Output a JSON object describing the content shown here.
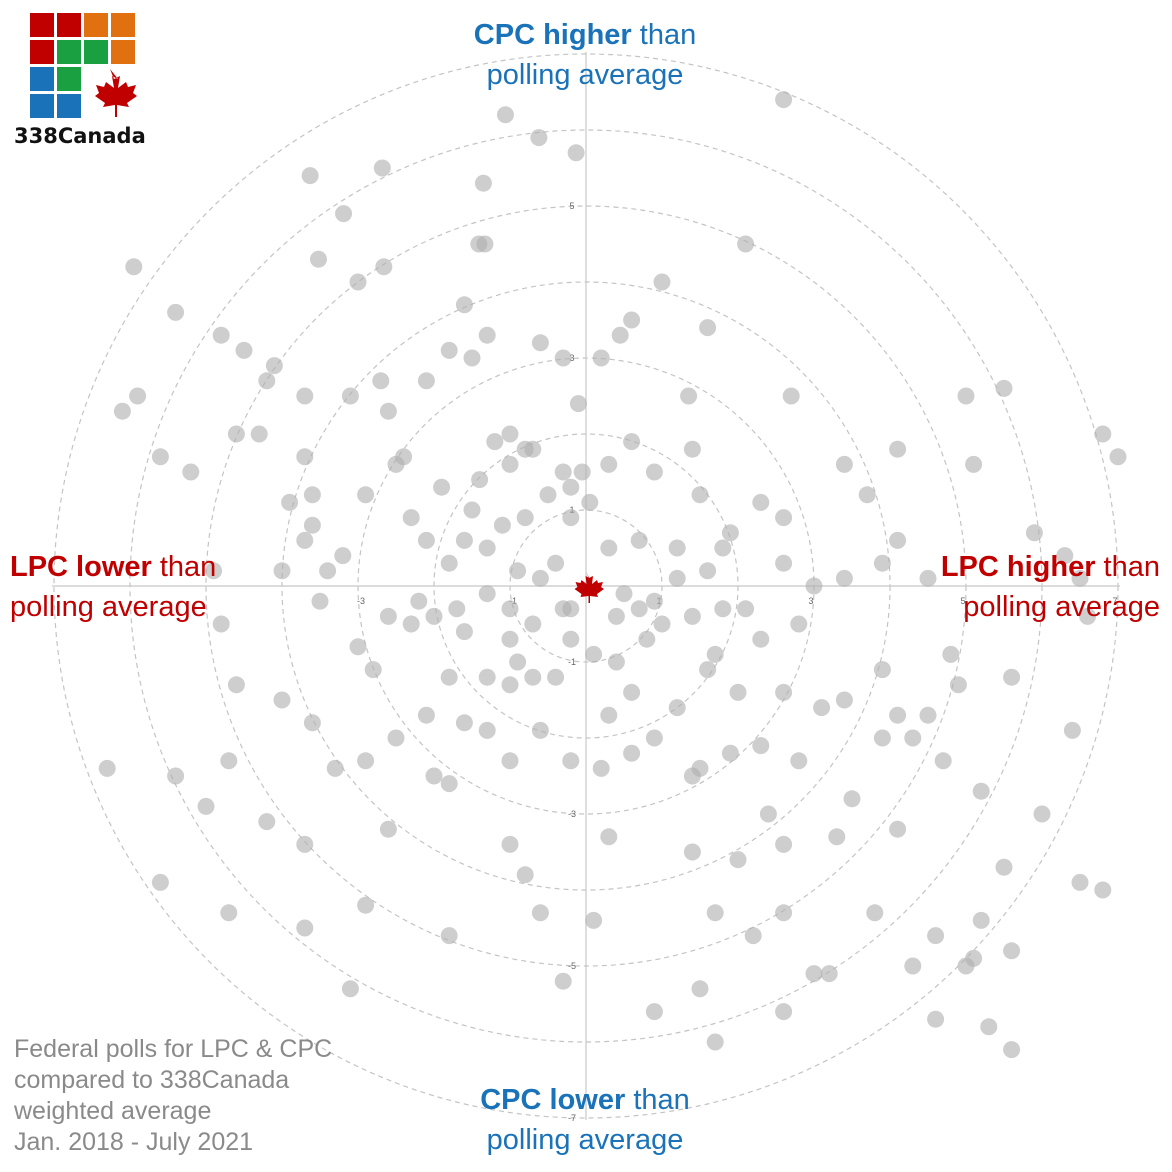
{
  "logo": {
    "text": "338Canada",
    "colors": [
      "#c00000",
      "#c00000",
      "#e07010",
      "#e07010",
      "#c00000",
      "#1aa040",
      "#1aa040",
      "#e07010",
      "#1a73b8",
      "#1aa040",
      "#1a73b8",
      "#1a73b8"
    ],
    "leaf_color": "#c00000"
  },
  "labels": {
    "top_bold": "CPC higher",
    "top_rest": " than",
    "top_line2": "polling average",
    "bottom_bold": "CPC lower",
    "bottom_rest": " than",
    "bottom_line2": "polling average",
    "left_bold": "LPC lower",
    "left_rest": " than",
    "left_line2": "polling average",
    "right_bold": "LPC higher",
    "right_rest": " than",
    "right_line2": "polling average"
  },
  "footnote": [
    "Federal polls for LPC & CPC",
    "compared to 338Canada",
    "weighted average",
    "Jan. 2018 - July 2021"
  ],
  "chart_data": {
    "type": "scatter",
    "xlabel": "",
    "ylabel": "",
    "xlim": [
      -7,
      7
    ],
    "ylim": [
      -7,
      7
    ],
    "ring_values": [
      1,
      2,
      3,
      4,
      5,
      6,
      7
    ],
    "tick_labels_y_pos": [
      "1",
      "3",
      "5"
    ],
    "tick_labels_y_neg": [
      "-1",
      "-3",
      "-5",
      "-7"
    ],
    "tick_labels_x_pos": [
      "1",
      "3",
      "5",
      "7"
    ],
    "tick_labels_x_neg": [
      "-1",
      "-3"
    ],
    "center_marker": "maple-leaf",
    "point_color": "#b0b0b0",
    "points": [
      [
        2.6,
        6.4
      ],
      [
        -1.06,
        6.2
      ],
      [
        -0.62,
        5.9
      ],
      [
        -0.13,
        5.7
      ],
      [
        -1.35,
        5.3
      ],
      [
        -3.63,
        5.4
      ],
      [
        -2.68,
        5.5
      ],
      [
        -3.19,
        4.9
      ],
      [
        -5.95,
        4.2
      ],
      [
        -3.52,
        4.3
      ],
      [
        -1.41,
        4.5
      ],
      [
        -1.33,
        4.5
      ],
      [
        -3.0,
        4.0
      ],
      [
        -2.66,
        4.2
      ],
      [
        2.1,
        4.5
      ],
      [
        1.0,
        4.0
      ],
      [
        -5.4,
        3.6
      ],
      [
        -4.8,
        3.3
      ],
      [
        -4.5,
        3.1
      ],
      [
        -4.2,
        2.7
      ],
      [
        -1.6,
        3.7
      ],
      [
        -1.3,
        3.3
      ],
      [
        -0.6,
        3.2
      ],
      [
        -0.3,
        3.0
      ],
      [
        0.2,
        3.0
      ],
      [
        0.45,
        3.3
      ],
      [
        0.6,
        3.5
      ],
      [
        1.6,
        3.4
      ],
      [
        2.7,
        2.5
      ],
      [
        1.35,
        2.5
      ],
      [
        -6.1,
        2.3
      ],
      [
        -5.9,
        2.5
      ],
      [
        -4.6,
        2.0
      ],
      [
        -4.3,
        2.0
      ],
      [
        -3.7,
        1.7
      ],
      [
        -3.6,
        1.2
      ],
      [
        -5.6,
        1.7
      ],
      [
        -5.2,
        1.5
      ],
      [
        -3.9,
        1.1
      ],
      [
        -3.6,
        0.8
      ],
      [
        -3.7,
        0.6
      ],
      [
        -2.7,
        2.7
      ],
      [
        -2.6,
        2.3
      ],
      [
        -2.4,
        1.7
      ],
      [
        -2.1,
        2.7
      ],
      [
        -1.8,
        3.1
      ],
      [
        -1.5,
        3.0
      ],
      [
        -1.2,
        1.9
      ],
      [
        -1.0,
        2.0
      ],
      [
        -0.8,
        1.8
      ],
      [
        -0.7,
        1.8
      ],
      [
        -0.1,
        2.4
      ],
      [
        -4.1,
        2.9
      ],
      [
        -3.7,
        2.5
      ],
      [
        -3.1,
        2.5
      ],
      [
        -4.9,
        0.2
      ],
      [
        -4.0,
        0.2
      ],
      [
        -3.4,
        0.2
      ],
      [
        -3.2,
        0.4
      ],
      [
        -3.5,
        -0.2
      ],
      [
        -4.8,
        -0.5
      ],
      [
        -3.0,
        -0.8
      ],
      [
        -2.3,
        -0.5
      ],
      [
        -2.8,
        -1.1
      ],
      [
        -2.0,
        -0.4
      ],
      [
        -1.6,
        -0.6
      ],
      [
        -1.0,
        -0.7
      ],
      [
        -0.7,
        -0.5
      ],
      [
        -1.8,
        -1.2
      ],
      [
        -1.3,
        -1.2
      ],
      [
        -0.9,
        -1.0
      ],
      [
        -0.4,
        -1.2
      ],
      [
        -0.2,
        -0.7
      ],
      [
        0.1,
        -0.9
      ],
      [
        0.4,
        -1.0
      ],
      [
        0.8,
        -0.7
      ],
      [
        1.4,
        -0.4
      ],
      [
        1.8,
        -0.3
      ],
      [
        -4.6,
        -1.3
      ],
      [
        -4.0,
        -1.5
      ],
      [
        -3.6,
        -1.8
      ],
      [
        -3.3,
        -2.4
      ],
      [
        -2.9,
        -2.3
      ],
      [
        -1.8,
        -2.6
      ],
      [
        -1.0,
        -2.3
      ],
      [
        -0.2,
        -2.3
      ],
      [
        0.2,
        -2.4
      ],
      [
        0.6,
        -2.2
      ],
      [
        0.9,
        -2.0
      ],
      [
        1.4,
        -2.5
      ],
      [
        1.9,
        -2.2
      ],
      [
        2.3,
        -2.1
      ],
      [
        2.8,
        -2.3
      ],
      [
        -6.3,
        -2.4
      ],
      [
        -5.4,
        -2.5
      ],
      [
        -4.7,
        -2.3
      ],
      [
        -5.0,
        -2.9
      ],
      [
        -4.2,
        -3.1
      ],
      [
        -3.7,
        -3.4
      ],
      [
        -2.6,
        -3.2
      ],
      [
        -1.0,
        -3.4
      ],
      [
        -0.8,
        -3.8
      ],
      [
        0.3,
        -3.3
      ],
      [
        1.4,
        -3.5
      ],
      [
        2.0,
        -3.6
      ],
      [
        2.6,
        -3.4
      ],
      [
        3.3,
        -3.3
      ],
      [
        4.1,
        -3.2
      ],
      [
        -5.6,
        -3.9
      ],
      [
        -4.7,
        -4.3
      ],
      [
        -2.9,
        -4.2
      ],
      [
        -3.7,
        -4.5
      ],
      [
        -1.8,
        -4.6
      ],
      [
        -0.6,
        -4.3
      ],
      [
        0.1,
        -4.4
      ],
      [
        1.7,
        -4.3
      ],
      [
        2.2,
        -4.6
      ],
      [
        2.6,
        -4.3
      ],
      [
        3.8,
        -4.3
      ],
      [
        4.6,
        -4.6
      ],
      [
        5.2,
        -4.4
      ],
      [
        5.5,
        -3.7
      ],
      [
        4.3,
        -5.0
      ],
      [
        3.2,
        -5.1
      ],
      [
        1.5,
        -5.3
      ],
      [
        1.7,
        -6.0
      ],
      [
        2.6,
        -5.6
      ],
      [
        3.0,
        -5.1
      ],
      [
        4.6,
        -5.7
      ],
      [
        5.3,
        -5.8
      ],
      [
        5.6,
        -6.1
      ],
      [
        6.8,
        -4.0
      ],
      [
        6.5,
        -3.9
      ],
      [
        5.2,
        -2.7
      ],
      [
        6.4,
        -1.9
      ],
      [
        4.3,
        -2.0
      ],
      [
        4.7,
        -2.3
      ],
      [
        5.1,
        -4.9
      ],
      [
        5.6,
        -4.8
      ],
      [
        5.0,
        -5.0
      ],
      [
        6.0,
        -3.0
      ],
      [
        4.5,
        -1.7
      ],
      [
        4.1,
        -1.7
      ],
      [
        3.5,
        -2.8
      ],
      [
        2.4,
        -3.0
      ],
      [
        -3.1,
        -5.3
      ],
      [
        -0.3,
        -5.2
      ],
      [
        0.9,
        -5.6
      ],
      [
        -1.6,
        -1.8
      ],
      [
        -2.1,
        -1.7
      ],
      [
        -2.5,
        -2.0
      ],
      [
        1.5,
        1.2
      ],
      [
        1.9,
        0.7
      ],
      [
        2.3,
        1.1
      ],
      [
        2.6,
        0.9
      ],
      [
        1.2,
        0.5
      ],
      [
        0.7,
        0.6
      ],
      [
        1.6,
        0.2
      ],
      [
        0.3,
        0.5
      ],
      [
        -0.2,
        0.9
      ],
      [
        0.05,
        1.1
      ],
      [
        0.9,
        1.5
      ],
      [
        1.4,
        1.8
      ],
      [
        0.3,
        1.6
      ],
      [
        0.6,
        1.9
      ],
      [
        -0.3,
        1.5
      ],
      [
        -0.5,
        1.2
      ],
      [
        -0.8,
        0.9
      ],
      [
        -1.1,
        0.8
      ],
      [
        -1.3,
        0.5
      ],
      [
        -1.6,
        0.6
      ],
      [
        -1.8,
        0.3
      ],
      [
        -2.1,
        0.6
      ],
      [
        -0.9,
        0.2
      ],
      [
        -0.6,
        0.1
      ],
      [
        -0.3,
        -0.3
      ],
      [
        0.4,
        -0.4
      ],
      [
        0.9,
        -0.2
      ],
      [
        1.2,
        0.1
      ],
      [
        1.8,
        0.5
      ],
      [
        2.6,
        0.3
      ],
      [
        3.0,
        0.0
      ],
      [
        3.4,
        0.1
      ],
      [
        3.9,
        0.3
      ],
      [
        4.1,
        0.6
      ],
      [
        4.5,
        0.1
      ],
      [
        3.4,
        1.6
      ],
      [
        3.7,
        1.2
      ],
      [
        4.1,
        1.8
      ],
      [
        5.1,
        1.6
      ],
      [
        5.0,
        2.5
      ],
      [
        5.5,
        2.6
      ],
      [
        6.8,
        2.0
      ],
      [
        7.0,
        1.7
      ],
      [
        5.9,
        0.7
      ],
      [
        6.3,
        0.4
      ],
      [
        6.5,
        0.1
      ],
      [
        6.6,
        -0.4
      ],
      [
        2.8,
        -0.5
      ],
      [
        2.3,
        -0.7
      ],
      [
        2.6,
        -1.4
      ],
      [
        3.1,
        -1.6
      ],
      [
        3.4,
        -1.5
      ],
      [
        3.9,
        -2.0
      ],
      [
        2.0,
        -1.4
      ],
      [
        1.6,
        -1.1
      ],
      [
        1.2,
        -1.6
      ],
      [
        1.5,
        -2.4
      ],
      [
        0.6,
        -1.4
      ],
      [
        0.3,
        -1.7
      ],
      [
        -0.6,
        -1.9
      ],
      [
        -1.3,
        -1.9
      ],
      [
        -2.0,
        -2.5
      ],
      [
        4.9,
        -1.3
      ],
      [
        5.6,
        -1.2
      ],
      [
        4.8,
        -0.9
      ],
      [
        3.9,
        -1.1
      ],
      [
        2.1,
        -0.3
      ],
      [
        1.7,
        -0.9
      ],
      [
        1.0,
        -0.5
      ],
      [
        -0.2,
        -0.3
      ],
      [
        -0.4,
        0.3
      ],
      [
        -1.0,
        -0.3
      ],
      [
        -1.3,
        -0.1
      ],
      [
        -1.7,
        -0.3
      ],
      [
        -2.2,
        -0.2
      ],
      [
        -2.6,
        -0.4
      ],
      [
        -0.05,
        1.5
      ],
      [
        -0.2,
        1.3
      ],
      [
        -1.0,
        1.6
      ],
      [
        -1.4,
        1.4
      ],
      [
        -1.5,
        1.0
      ],
      [
        -1.9,
        1.3
      ],
      [
        -2.3,
        0.9
      ],
      [
        -2.5,
        1.6
      ],
      [
        -2.9,
        1.2
      ],
      [
        -0.7,
        -1.2
      ],
      [
        -1.0,
        -1.3
      ],
      [
        0.5,
        -0.1
      ],
      [
        0.7,
        -0.3
      ]
    ]
  }
}
